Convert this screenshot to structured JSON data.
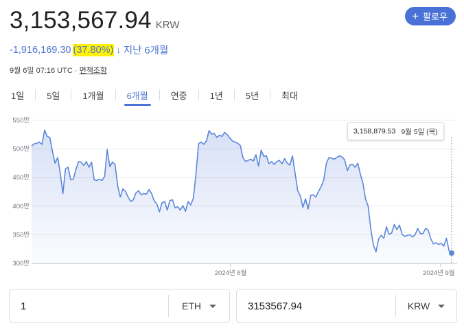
{
  "header": {
    "price": "3,153,567.94",
    "currency": "KRW",
    "follow_label": "팔로우",
    "change_abs": "-1,916,169.30",
    "change_pct": "(37.80%)",
    "change_arrow": "↓",
    "change_period": "지난 6개월",
    "timestamp": "9월 6일 07:16 UTC",
    "separator": "·",
    "disclaimer": "면책조항"
  },
  "tabs": [
    "1일",
    "5일",
    "1개월",
    "6개월",
    "연중",
    "1년",
    "5년",
    "최대"
  ],
  "active_tab": "6개월",
  "colors": {
    "accent": "#4a72d6",
    "highlight": "#fff200",
    "line": "#5b87d8"
  },
  "chart_data": {
    "type": "area",
    "ylim": [
      300,
      550
    ],
    "y_ticks": [
      550,
      500,
      450,
      400,
      350,
      300
    ],
    "y_tick_labels": [
      "550만",
      "500만",
      "450만",
      "400만",
      "350만",
      "300만"
    ],
    "x_ticks": [
      "2024년 6월",
      "2024년 9월"
    ],
    "values": [
      505,
      509,
      510,
      512,
      508,
      533,
      522,
      520,
      496,
      475,
      485,
      458,
      422,
      465,
      468,
      446,
      447,
      464,
      478,
      477,
      471,
      478,
      468,
      477,
      446,
      445,
      447,
      445,
      452,
      499,
      469,
      477,
      473,
      436,
      416,
      430,
      426,
      416,
      408,
      411,
      423,
      427,
      420,
      422,
      421,
      429,
      422,
      409,
      404,
      390,
      406,
      408,
      393,
      410,
      411,
      397,
      399,
      393,
      401,
      391,
      408,
      402,
      414,
      456,
      509,
      512,
      508,
      514,
      532,
      526,
      527,
      520,
      524,
      522,
      529,
      525,
      519,
      514,
      512,
      510,
      506,
      485,
      478,
      480,
      482,
      479,
      490,
      470,
      498,
      487,
      488,
      474,
      478,
      473,
      478,
      480,
      474,
      483,
      475,
      472,
      488,
      458,
      427,
      418,
      398,
      413,
      395,
      419,
      420,
      416,
      426,
      434,
      446,
      475,
      485,
      484,
      482,
      485,
      488,
      486,
      481,
      462,
      472,
      473,
      468,
      475,
      456,
      440,
      412,
      400,
      360,
      332,
      320,
      343,
      349,
      344,
      364,
      351,
      353,
      368,
      359,
      367,
      351,
      347,
      349,
      350,
      346,
      350,
      361,
      352,
      352,
      361,
      358,
      343,
      334,
      336,
      333,
      335,
      330,
      344,
      322,
      318
    ],
    "tooltip_value": "3,158,879.53",
    "tooltip_date": "9월 5일 (목)"
  },
  "converter": {
    "left_value": "1",
    "left_unit": "ETH",
    "right_value": "3153567.94",
    "right_unit": "KRW"
  }
}
